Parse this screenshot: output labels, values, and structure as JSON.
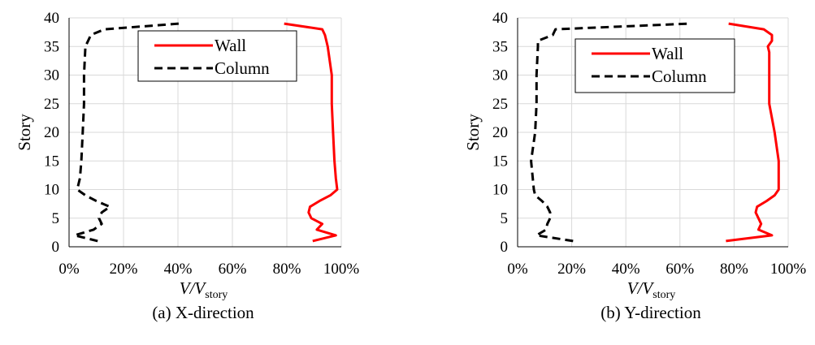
{
  "figure": {
    "panels": [
      {
        "caption": "(a) X-direction"
      },
      {
        "caption": "(b) Y-direction"
      }
    ]
  },
  "chart_data": [
    {
      "type": "line",
      "title": "",
      "caption": "(a) X-direction",
      "ylabel": "Story",
      "xlabel_main": "V/V",
      "xlabel_sub": "story",
      "xlim": [
        0,
        100
      ],
      "ylim": [
        0,
        40
      ],
      "xticks": [
        "0%",
        "20%",
        "40%",
        "60%",
        "80%",
        "100%"
      ],
      "yticks": [
        "0",
        "5",
        "10",
        "15",
        "20",
        "25",
        "30",
        "35",
        "40"
      ],
      "grid": true,
      "legend_position": "top-center",
      "series": [
        {
          "name": "Wall",
          "color": "#ff0000",
          "style": "solid",
          "points": [
            [
              89.5,
              1
            ],
            [
              98,
              2
            ],
            [
              91,
              3
            ],
            [
              93,
              4
            ],
            [
              89,
              5
            ],
            [
              88,
              6
            ],
            [
              88.5,
              7
            ],
            [
              92,
              8
            ],
            [
              96,
              9
            ],
            [
              98.5,
              10
            ],
            [
              98,
              12
            ],
            [
              97.5,
              15
            ],
            [
              97,
              20
            ],
            [
              96.5,
              25
            ],
            [
              96.5,
              30
            ],
            [
              95,
              35
            ],
            [
              94.5,
              36
            ],
            [
              94,
              37
            ],
            [
              93,
              38
            ],
            [
              79,
              39
            ]
          ]
        },
        {
          "name": "Column",
          "color": "#000000",
          "style": "dashed",
          "points": [
            [
              10.5,
              1
            ],
            [
              2,
              2
            ],
            [
              9,
              3
            ],
            [
              12,
              4
            ],
            [
              11,
              5
            ],
            [
              12,
              6
            ],
            [
              15,
              7
            ],
            [
              10,
              8
            ],
            [
              6,
              9
            ],
            [
              3,
              10
            ],
            [
              4,
              12
            ],
            [
              4.5,
              15
            ],
            [
              5,
              20
            ],
            [
              5.5,
              25
            ],
            [
              5.5,
              30
            ],
            [
              6,
              35
            ],
            [
              7,
              36
            ],
            [
              8,
              37
            ],
            [
              13,
              38
            ],
            [
              40.5,
              39
            ]
          ]
        }
      ]
    },
    {
      "type": "line",
      "title": "",
      "caption": "(b) Y-direction",
      "ylabel": "Story",
      "xlabel_main": "V/V",
      "xlabel_sub": "story",
      "xlim": [
        0,
        100
      ],
      "ylim": [
        0,
        40
      ],
      "xticks": [
        "0%",
        "20%",
        "40%",
        "60%",
        "80%",
        "100%"
      ],
      "yticks": [
        "0",
        "5",
        "10",
        "15",
        "20",
        "25",
        "30",
        "35",
        "40"
      ],
      "grid": true,
      "legend_position": "top-center",
      "series": [
        {
          "name": "Wall",
          "color": "#ff0000",
          "style": "solid",
          "points": [
            [
              77,
              1
            ],
            [
              94,
              2
            ],
            [
              89,
              3
            ],
            [
              90,
              4
            ],
            [
              89,
              5
            ],
            [
              88,
              6
            ],
            [
              88.5,
              7
            ],
            [
              92,
              8
            ],
            [
              95,
              9
            ],
            [
              96.5,
              10
            ],
            [
              96.5,
              15
            ],
            [
              95,
              20
            ],
            [
              93,
              25
            ],
            [
              93,
              30
            ],
            [
              93,
              34
            ],
            [
              92.5,
              35
            ],
            [
              94,
              36
            ],
            [
              94,
              37
            ],
            [
              91,
              38
            ],
            [
              78,
              39
            ]
          ]
        },
        {
          "name": "Column",
          "color": "#000000",
          "style": "dashed",
          "points": [
            [
              20.5,
              1
            ],
            [
              7,
              2
            ],
            [
              10.5,
              3
            ],
            [
              11,
              4
            ],
            [
              12,
              5
            ],
            [
              12,
              6
            ],
            [
              11,
              7
            ],
            [
              9,
              8
            ],
            [
              6.5,
              9
            ],
            [
              6,
              10
            ],
            [
              5,
              15
            ],
            [
              6.5,
              20
            ],
            [
              7,
              25
            ],
            [
              7,
              30
            ],
            [
              7.5,
              35
            ],
            [
              7.5,
              36
            ],
            [
              13,
              37
            ],
            [
              14,
              38
            ],
            [
              63.5,
              39
            ]
          ]
        }
      ]
    }
  ]
}
